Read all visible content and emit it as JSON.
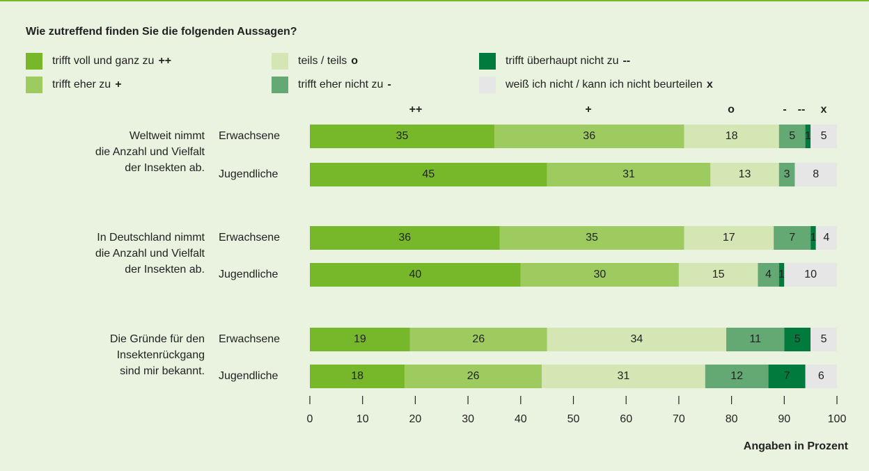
{
  "chart_data": {
    "type": "stacked-bar-horizontal",
    "title": "Wie zutreffend finden Sie die folgenden Aussagen?",
    "xlabel": "Angaben in Prozent",
    "groups": [
      {
        "label": [
          "Weltweit nimmt",
          "die Anzahl und Vielfalt",
          "der Insekten ab."
        ],
        "categories": [
          "Erwachsene",
          "Jugendliche"
        ]
      },
      {
        "label": [
          "In Deutschland nimmt",
          "die Anzahl und Vielfalt",
          "der Insekten ab."
        ],
        "categories": [
          "Erwachsene",
          "Jugendliche"
        ]
      },
      {
        "label": [
          "Die Gründe für den",
          "Insektenrückgang",
          "sind mir bekannt."
        ],
        "categories": [
          "Erwachsene",
          "Jugendliche"
        ]
      }
    ],
    "series": [
      {
        "name": "trifft voll und ganz zu",
        "symbol": "++",
        "color": "#76b82a",
        "values": [
          35,
          45,
          36,
          40,
          19,
          18
        ]
      },
      {
        "name": "trifft eher zu",
        "symbol": "+",
        "color": "#9dcb5f",
        "values": [
          36,
          31,
          35,
          30,
          26,
          26
        ]
      },
      {
        "name": "teils / teils",
        "symbol": "o",
        "color": "#d4e6b3",
        "values": [
          18,
          13,
          17,
          15,
          34,
          31
        ]
      },
      {
        "name": "trifft eher nicht zu",
        "symbol": "-",
        "color": "#64a874",
        "values": [
          5,
          3,
          7,
          4,
          11,
          12
        ]
      },
      {
        "name": "trifft überhaupt nicht zu",
        "symbol": "--",
        "color": "#007a3d",
        "values": [
          1,
          0,
          1,
          1,
          5,
          7
        ]
      },
      {
        "name": "weiß ich nicht / kann ich nicht beurteilen",
        "symbol": "x",
        "color": "#e6e6e6",
        "values": [
          5,
          8,
          4,
          10,
          5,
          6
        ]
      }
    ],
    "xlim": [
      0,
      100
    ],
    "xticks": [
      0,
      10,
      20,
      30,
      40,
      50,
      60,
      70,
      80,
      90,
      100
    ]
  }
}
